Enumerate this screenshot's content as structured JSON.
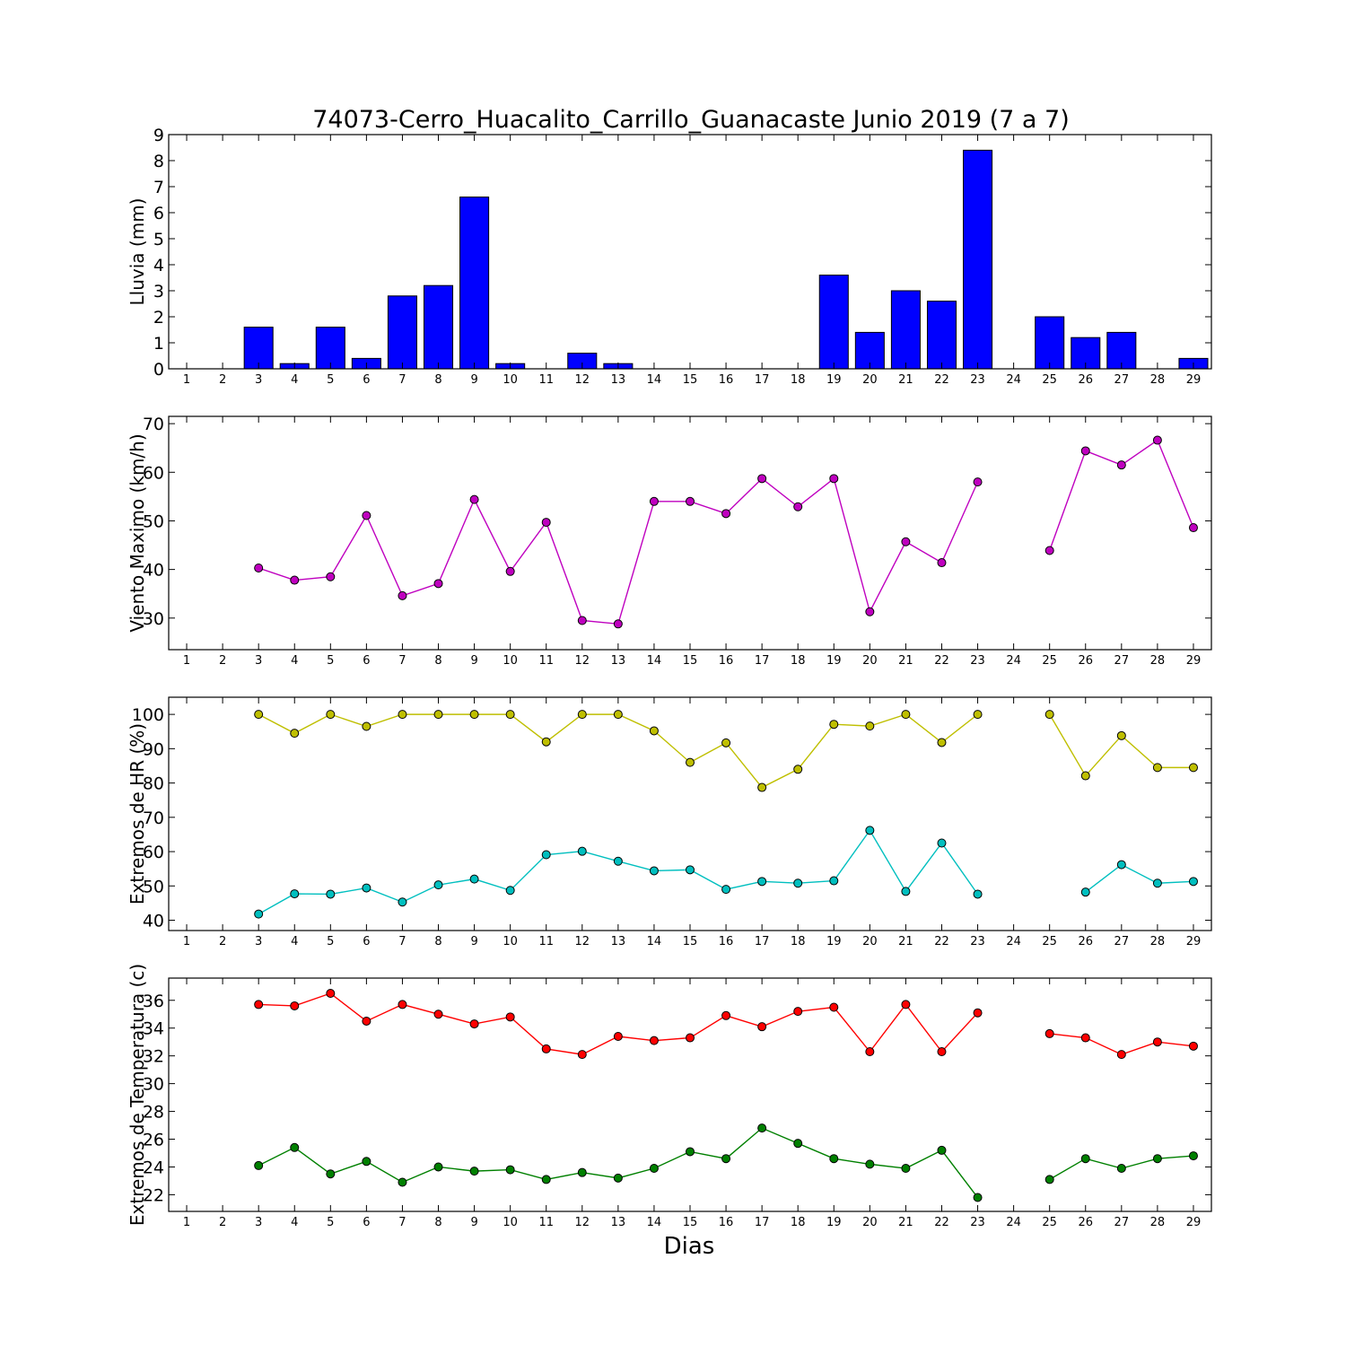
{
  "title": "74073-Cerro_Huacalito_Carrillo_Guanacaste Junio 2019  (7 a 7)",
  "xlabel": "Dias",
  "chart_data": [
    {
      "type": "bar",
      "ylabel": "Lluvia (mm)",
      "x": [
        1,
        2,
        3,
        4,
        5,
        6,
        7,
        8,
        9,
        10,
        11,
        12,
        13,
        14,
        15,
        16,
        17,
        18,
        19,
        20,
        21,
        22,
        23,
        24,
        25,
        26,
        27,
        28,
        29
      ],
      "values": [
        0,
        0,
        1.6,
        0.2,
        1.6,
        0.4,
        2.8,
        3.2,
        6.6,
        0.2,
        0,
        0.6,
        0.2,
        0,
        0,
        0,
        0,
        0,
        3.6,
        1.4,
        3.0,
        2.6,
        8.4,
        null,
        2.0,
        1.2,
        1.4,
        null,
        0.4
      ],
      "color": "#0000ff",
      "ylim": [
        0,
        9
      ],
      "yticks": [
        0,
        1,
        2,
        3,
        4,
        5,
        6,
        7,
        8,
        9
      ]
    },
    {
      "type": "line",
      "ylabel": "Viento Maximo (km/h)",
      "x": [
        1,
        2,
        3,
        4,
        5,
        6,
        7,
        8,
        9,
        10,
        11,
        12,
        13,
        14,
        15,
        16,
        17,
        18,
        19,
        20,
        21,
        22,
        23,
        24,
        25,
        26,
        27,
        28,
        29
      ],
      "series": [
        {
          "color": "#bf00bf",
          "values": [
            null,
            null,
            40.3,
            37.8,
            38.5,
            51.1,
            34.6,
            37.1,
            54.4,
            39.6,
            49.7,
            29.5,
            28.8,
            54.0,
            54.0,
            51.5,
            58.7,
            52.9,
            58.7,
            31.3,
            45.7,
            41.4,
            58.0,
            null,
            43.9,
            64.4,
            61.5,
            66.6,
            48.6
          ]
        }
      ],
      "ylim": [
        23.5,
        71.5
      ],
      "yticks": [
        30,
        40,
        50,
        60,
        70
      ]
    },
    {
      "type": "line",
      "ylabel": "Extremos de HR (%)",
      "x": [
        1,
        2,
        3,
        4,
        5,
        6,
        7,
        8,
        9,
        10,
        11,
        12,
        13,
        14,
        15,
        16,
        17,
        18,
        19,
        20,
        21,
        22,
        23,
        24,
        25,
        26,
        27,
        28,
        29
      ],
      "series": [
        {
          "color": "#bfbf00",
          "values": [
            null,
            null,
            100,
            94.5,
            100,
            96.5,
            100,
            100,
            100,
            100,
            92,
            100,
            100,
            95.2,
            86,
            91.7,
            78.7,
            84,
            97.1,
            96.6,
            100,
            91.8,
            100,
            null,
            100,
            82.1,
            93.8,
            84.5,
            84.5
          ]
        },
        {
          "color": "#00bfbf",
          "values": [
            null,
            null,
            41.8,
            47.7,
            47.6,
            49.4,
            45.3,
            50.3,
            52,
            48.7,
            59.1,
            60.1,
            57.2,
            54.4,
            54.7,
            49,
            51.3,
            50.8,
            51.5,
            66.2,
            48.4,
            62.5,
            47.6,
            null,
            null,
            48.2,
            56.2,
            50.8,
            51.3
          ]
        }
      ],
      "ylim": [
        37,
        105
      ],
      "yticks": [
        40,
        50,
        60,
        70,
        80,
        90,
        100
      ]
    },
    {
      "type": "line",
      "ylabel": "Extremos de Temperatura (c)",
      "x": [
        1,
        2,
        3,
        4,
        5,
        6,
        7,
        8,
        9,
        10,
        11,
        12,
        13,
        14,
        15,
        16,
        17,
        18,
        19,
        20,
        21,
        22,
        23,
        24,
        25,
        26,
        27,
        28,
        29
      ],
      "series": [
        {
          "color": "#ff0000",
          "values": [
            null,
            null,
            35.7,
            35.6,
            36.5,
            34.5,
            35.7,
            35,
            34.3,
            34.8,
            32.5,
            32.1,
            33.4,
            33.1,
            33.3,
            34.9,
            34.1,
            35.2,
            35.5,
            32.3,
            35.7,
            32.3,
            35.1,
            null,
            33.6,
            33.3,
            32.1,
            33,
            32.7
          ]
        },
        {
          "color": "#008000",
          "values": [
            null,
            null,
            24.1,
            25.4,
            23.5,
            24.4,
            22.9,
            24,
            23.7,
            23.8,
            23.1,
            23.6,
            23.2,
            23.9,
            25.1,
            24.6,
            26.8,
            25.7,
            24.6,
            24.2,
            23.9,
            25.2,
            21.8,
            null,
            23.1,
            24.6,
            23.9,
            24.6,
            24.8
          ]
        }
      ],
      "ylim": [
        20.8,
        37.6
      ],
      "yticks": [
        22,
        24,
        26,
        28,
        30,
        32,
        34,
        36
      ]
    }
  ]
}
